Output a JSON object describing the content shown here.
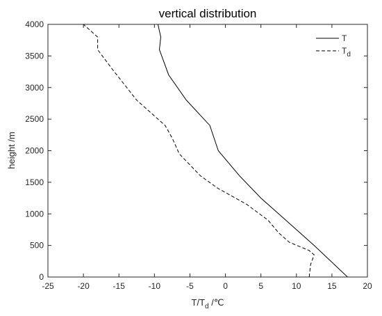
{
  "chart_data": {
    "type": "line",
    "title": "vertical distribution",
    "xlabel": {
      "main": "T/T",
      "sub": "d",
      "unit": " /℃"
    },
    "ylabel": "height /m",
    "xlim": [
      -25,
      20
    ],
    "ylim": [
      0,
      4000
    ],
    "xticks": [
      -25,
      -20,
      -15,
      -10,
      -5,
      0,
      5,
      10,
      15,
      20
    ],
    "yticks": [
      0,
      500,
      1000,
      1500,
      2000,
      2500,
      3000,
      3500,
      4000
    ],
    "grid": false,
    "legend_position": "top-right",
    "series": [
      {
        "name": "T",
        "legend_main": "T",
        "legend_sub": "",
        "style": "solid",
        "color": "#000000",
        "points": [
          [
            17.2,
            0
          ],
          [
            12.5,
            500
          ],
          [
            8.5,
            900
          ],
          [
            5,
            1250
          ],
          [
            2,
            1600
          ],
          [
            -1,
            2000
          ],
          [
            -2.2,
            2400
          ],
          [
            -5.5,
            2800
          ],
          [
            -8,
            3200
          ],
          [
            -9.3,
            3600
          ],
          [
            -9.1,
            3800
          ],
          [
            -9.5,
            4000
          ]
        ]
      },
      {
        "name": "Td",
        "legend_main": "T",
        "legend_sub": "d",
        "style": "dashed",
        "color": "#000000",
        "points": [
          [
            11.8,
            0
          ],
          [
            12,
            200
          ],
          [
            12.5,
            350
          ],
          [
            11.8,
            420
          ],
          [
            9,
            550
          ],
          [
            7.5,
            700
          ],
          [
            6,
            900
          ],
          [
            3,
            1150
          ],
          [
            -1,
            1400
          ],
          [
            -3.5,
            1600
          ],
          [
            -6.5,
            1950
          ],
          [
            -7.5,
            2200
          ],
          [
            -8.5,
            2400
          ],
          [
            -12.5,
            2800
          ],
          [
            -16,
            3300
          ],
          [
            -18,
            3600
          ],
          [
            -18,
            3800
          ],
          [
            -20,
            4000
          ]
        ]
      }
    ]
  }
}
